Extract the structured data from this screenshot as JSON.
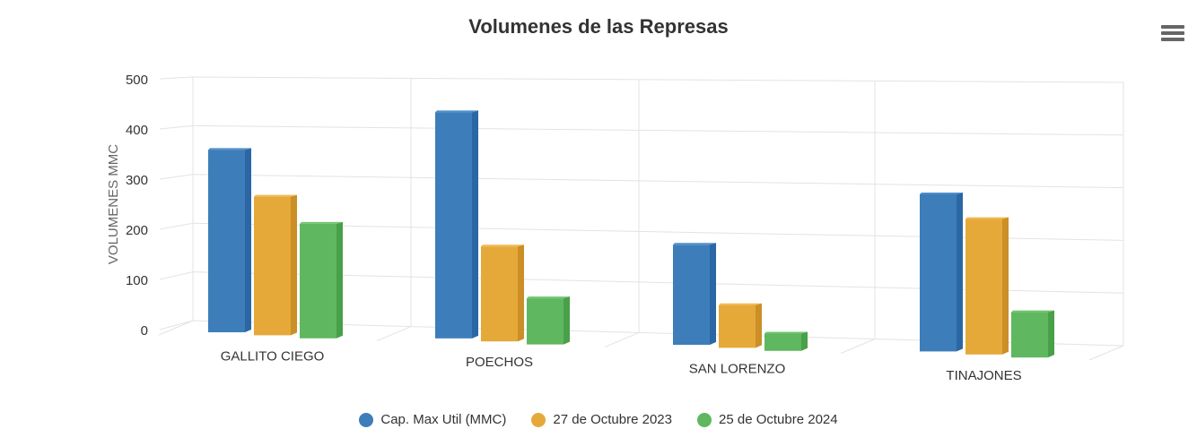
{
  "header": {
    "title": "Volumenes de las Represas",
    "menu_icon": "hamburger-menu-icon"
  },
  "colors": {
    "series": [
      "#3D7EBA",
      "#E5A93A",
      "#5FB75F"
    ],
    "series_side": [
      "#2A67A4",
      "#CC8E26",
      "#48A048"
    ],
    "series_top": [
      "#4F8FCB",
      "#F0B84A",
      "#70C670"
    ],
    "grid": "#E3E3E3",
    "text": "#333333"
  },
  "legend": {
    "items": [
      {
        "label": "Cap. Max Util (MMC)",
        "color": "#3D7EBA"
      },
      {
        "label": "27 de Octubre 2023",
        "color": "#E5A93A"
      },
      {
        "label": "25 de Octubre 2024",
        "color": "#5FB75F"
      }
    ]
  },
  "chart_data": {
    "type": "bar",
    "subtype": "3d-column",
    "title": "Volumenes de las Represas",
    "xlabel": "",
    "ylabel": "VOLUMENES MMC",
    "ylim": [
      0,
      500
    ],
    "yticks": [
      0,
      100,
      200,
      300,
      400,
      500
    ],
    "grid": true,
    "legend_position": "bottom",
    "categories": [
      "GALLITO CIEGO",
      "POECHOS",
      "SAN LORENZO",
      "TINAJONES"
    ],
    "series": [
      {
        "name": "Cap. Max Util (MMC)",
        "values": [
          366,
          445,
          193,
          297
        ]
      },
      {
        "name": "27 de Octubre 2023",
        "values": [
          277,
          186,
          82,
          255
        ]
      },
      {
        "name": "25 de Octubre 2024",
        "values": [
          228,
          90,
          33,
          85
        ]
      }
    ]
  }
}
